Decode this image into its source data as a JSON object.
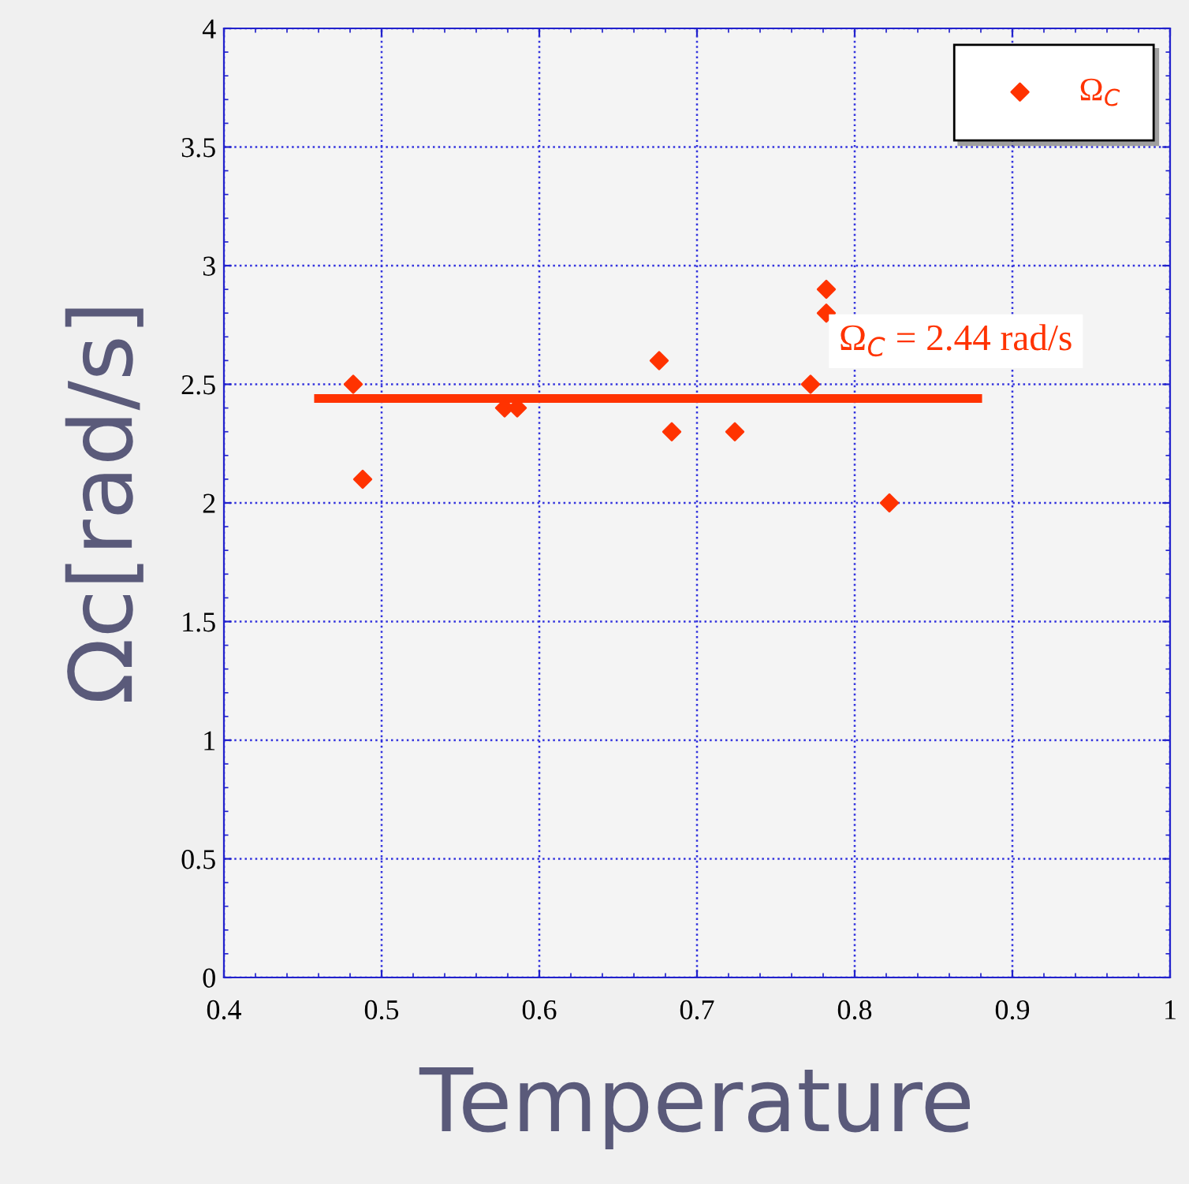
{
  "chart_data": {
    "type": "scatter",
    "xlabel": "Temperature",
    "ylabel": "Ωc[rad/s]",
    "xlim": [
      0.4,
      1
    ],
    "xticks": [
      0.4,
      0.5,
      0.6,
      0.7,
      0.8,
      0.9,
      1
    ],
    "ylim": [
      0,
      4
    ],
    "yticks": [
      0,
      0.5,
      1,
      1.5,
      2,
      2.5,
      3,
      3.5,
      4
    ],
    "grid": true,
    "legend": "top right",
    "series": [
      {
        "name": "Ω$_{C}$",
        "marker": "diamond",
        "color": "#ff3300",
        "x": [
          0.482,
          0.488,
          0.578,
          0.586,
          0.676,
          0.684,
          0.724,
          0.772,
          0.782,
          0.782,
          0.822
        ],
        "values": [
          2.5,
          2.1,
          2.4,
          2.4,
          2.6,
          2.3,
          2.3,
          2.5,
          2.9,
          2.8,
          2.0
        ]
      },
      {
        "type": "line",
        "color": "#ff3300",
        "x": [
          0.46,
          0.878
        ],
        "values": [
          2.44,
          2.44
        ]
      }
    ],
    "annotations": [
      {
        "text": "Ω$_{C}$ = 2.44 rad/s",
        "x": 0.79,
        "y": 2.44
      }
    ]
  }
}
